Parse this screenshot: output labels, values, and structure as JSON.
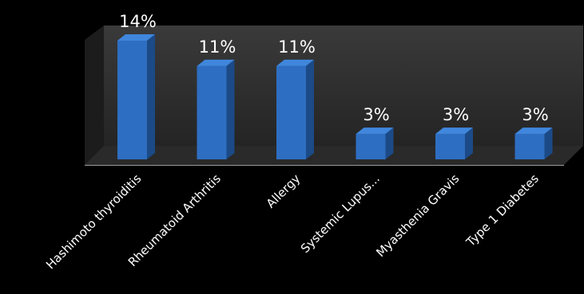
{
  "chart_data": {
    "type": "bar",
    "style": "3d-column",
    "categories": [
      "Hashimoto thyroiditis",
      "Rheumatoid Arthritis",
      "Allergy",
      "Systemic Lupus...",
      "Myasthenia Gravis",
      "Type 1 Diabetes"
    ],
    "values": [
      14,
      11,
      11,
      3,
      3,
      3
    ],
    "value_labels": [
      "14%",
      "11%",
      "11%",
      "3%",
      "3%",
      "3%"
    ],
    "title": "",
    "xlabel": "",
    "ylabel": "",
    "ylim": [
      0,
      14
    ],
    "grid": false,
    "legend": "none"
  },
  "colors": {
    "background": "#000000",
    "bar_front": "#2e6ec2",
    "bar_side": "#1b4a86",
    "bar_top": "#3f86dc",
    "back_wall": "#2f2f2f",
    "floor": "#262626",
    "text": "#ffffff"
  }
}
